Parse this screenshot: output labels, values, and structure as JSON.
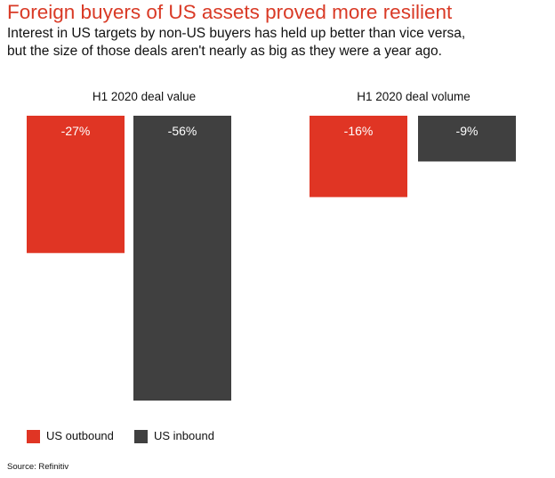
{
  "title": "Foreign buyers of US assets proved more resilient",
  "subtitle_lines": [
    "Interest in US targets by non-US buyers has held up better than vice versa,",
    "but the size of those deals aren't nearly as big as they were a year ago."
  ],
  "source": "Source: Refinitiv",
  "colors": {
    "title": "#d93a26",
    "us_outbound": "#e03524",
    "us_inbound": "#404040",
    "bar_label": "#ffffff"
  },
  "chart_data": [
    {
      "type": "bar",
      "title": "H1 2020 deal value",
      "categories": [
        "US outbound",
        "US inbound"
      ],
      "values": [
        -27,
        -56
      ],
      "labels": [
        "-27%",
        "-56%"
      ],
      "unit": "%",
      "ylim": [
        -56,
        0
      ]
    },
    {
      "type": "bar",
      "title": "H1 2020 deal volume",
      "categories": [
        "US outbound",
        "US inbound"
      ],
      "values": [
        -16,
        -9
      ],
      "labels": [
        "-16%",
        "-9%"
      ],
      "unit": "%",
      "ylim": [
        -56,
        0
      ]
    }
  ],
  "legend": [
    {
      "label": "US outbound",
      "color": "#e03524"
    },
    {
      "label": "US inbound",
      "color": "#404040"
    }
  ]
}
